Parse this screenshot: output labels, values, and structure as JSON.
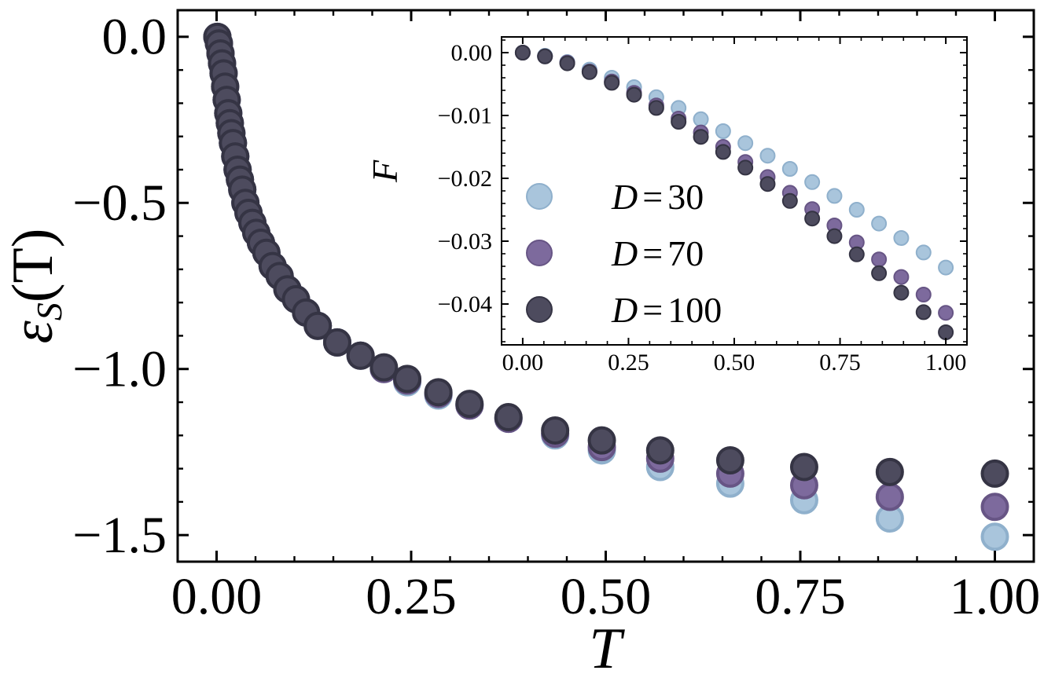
{
  "colors": {
    "D30": "#a9c5dc",
    "D70": "#7d6a9d",
    "D100": "#4d4b5e",
    "D30_edge": "#8fb0cc",
    "D70_edge": "#675585",
    "D100_edge": "#353444"
  },
  "chart_data": [
    {
      "name": "main",
      "type": "scatter",
      "title": "",
      "xlabel": "T",
      "ylabel": "ε_S(T)",
      "ylabel_main": "ε",
      "ylabel_sub": "S",
      "ylabel_rest": "(T)",
      "xlim": [
        -0.05,
        1.05
      ],
      "ylim": [
        -1.58,
        0.08
      ],
      "xticks": [
        0.0,
        0.25,
        0.5,
        0.75,
        1.0
      ],
      "xtick_labels": [
        "0.00",
        "0.25",
        "0.50",
        "0.75",
        "1.00"
      ],
      "yticks": [
        0.0,
        -0.5,
        -1.0,
        -1.5
      ],
      "ytick_labels": [
        "0.0",
        "−0.5",
        "−1.0",
        "−1.5"
      ],
      "series": [
        {
          "name": "D = 30",
          "x": [
            0.001,
            0.003,
            0.005,
            0.007,
            0.009,
            0.011,
            0.013,
            0.015,
            0.017,
            0.019,
            0.021,
            0.024,
            0.027,
            0.03,
            0.033,
            0.037,
            0.041,
            0.046,
            0.051,
            0.057,
            0.064,
            0.072,
            0.081,
            0.091,
            0.102,
            0.115,
            0.13,
            0.155,
            0.185,
            0.215,
            0.245,
            0.285,
            0.325,
            0.375,
            0.435,
            0.495,
            0.57,
            0.66,
            0.755,
            0.865,
            1.0
          ],
          "y": [
            0.0,
            -0.02,
            -0.05,
            -0.08,
            -0.11,
            -0.15,
            -0.19,
            -0.23,
            -0.26,
            -0.29,
            -0.32,
            -0.36,
            -0.4,
            -0.43,
            -0.46,
            -0.5,
            -0.53,
            -0.56,
            -0.59,
            -0.62,
            -0.65,
            -0.69,
            -0.72,
            -0.76,
            -0.79,
            -0.83,
            -0.87,
            -0.92,
            -0.96,
            -1.0,
            -1.04,
            -1.08,
            -1.11,
            -1.15,
            -1.2,
            -1.245,
            -1.295,
            -1.345,
            -1.395,
            -1.45,
            -1.505
          ]
        },
        {
          "name": "D = 70",
          "x": [
            0.001,
            0.003,
            0.005,
            0.007,
            0.009,
            0.011,
            0.013,
            0.015,
            0.017,
            0.019,
            0.021,
            0.024,
            0.027,
            0.03,
            0.033,
            0.037,
            0.041,
            0.046,
            0.051,
            0.057,
            0.064,
            0.072,
            0.081,
            0.091,
            0.102,
            0.115,
            0.13,
            0.155,
            0.185,
            0.215,
            0.245,
            0.285,
            0.325,
            0.375,
            0.435,
            0.495,
            0.57,
            0.66,
            0.755,
            0.865,
            1.0
          ],
          "y": [
            0.0,
            -0.02,
            -0.05,
            -0.08,
            -0.11,
            -0.15,
            -0.19,
            -0.23,
            -0.26,
            -0.29,
            -0.32,
            -0.36,
            -0.4,
            -0.43,
            -0.46,
            -0.5,
            -0.53,
            -0.56,
            -0.59,
            -0.62,
            -0.65,
            -0.69,
            -0.72,
            -0.76,
            -0.79,
            -0.83,
            -0.87,
            -0.92,
            -0.96,
            -1.0,
            -1.035,
            -1.075,
            -1.11,
            -1.15,
            -1.195,
            -1.235,
            -1.27,
            -1.315,
            -1.35,
            -1.385,
            -1.415
          ]
        },
        {
          "name": "D = 100",
          "x": [
            0.001,
            0.003,
            0.005,
            0.007,
            0.009,
            0.011,
            0.013,
            0.015,
            0.017,
            0.019,
            0.021,
            0.024,
            0.027,
            0.03,
            0.033,
            0.037,
            0.041,
            0.046,
            0.051,
            0.057,
            0.064,
            0.072,
            0.081,
            0.091,
            0.102,
            0.115,
            0.13,
            0.155,
            0.185,
            0.215,
            0.245,
            0.285,
            0.325,
            0.375,
            0.435,
            0.495,
            0.57,
            0.66,
            0.755,
            0.865,
            1.0
          ],
          "y": [
            0.0,
            -0.02,
            -0.05,
            -0.08,
            -0.11,
            -0.15,
            -0.19,
            -0.23,
            -0.26,
            -0.29,
            -0.32,
            -0.36,
            -0.4,
            -0.43,
            -0.46,
            -0.5,
            -0.53,
            -0.56,
            -0.59,
            -0.62,
            -0.65,
            -0.69,
            -0.72,
            -0.76,
            -0.79,
            -0.83,
            -0.87,
            -0.92,
            -0.96,
            -0.995,
            -1.03,
            -1.07,
            -1.105,
            -1.145,
            -1.185,
            -1.215,
            -1.245,
            -1.275,
            -1.295,
            -1.31,
            -1.315
          ]
        }
      ]
    },
    {
      "name": "inset",
      "type": "scatter",
      "title": "",
      "xlabel": "",
      "ylabel": "F",
      "xlim": [
        -0.05,
        1.05
      ],
      "ylim": [
        -0.0465,
        0.0025
      ],
      "xticks": [
        0.0,
        0.25,
        0.5,
        0.75,
        1.0
      ],
      "xtick_labels": [
        "0.00",
        "0.25",
        "0.50",
        "0.75",
        "1.00"
      ],
      "yticks": [
        0.0,
        -0.01,
        -0.02,
        -0.03,
        -0.04
      ],
      "ytick_labels": [
        "0.00",
        "−0.01",
        "−0.02",
        "−0.03",
        "−0.04"
      ],
      "legend": {
        "placement": "center-left",
        "entries": [
          "D = 30",
          "D = 70",
          "D = 100"
        ],
        "symbols": [
          "D",
          "D",
          "D"
        ],
        "equals": [
          "=",
          "=",
          "="
        ],
        "numbers": [
          "30",
          "70",
          "100"
        ]
      },
      "series": [
        {
          "name": "D = 30",
          "x": [
            0.0,
            0.0526,
            0.1053,
            0.1579,
            0.2105,
            0.2632,
            0.3158,
            0.3684,
            0.4211,
            0.4737,
            0.5263,
            0.5789,
            0.6316,
            0.6842,
            0.7368,
            0.7895,
            0.8421,
            0.8947,
            0.9474,
            1.0
          ],
          "y": [
            0.0,
            -0.0005,
            -0.0015,
            -0.0027,
            -0.004,
            -0.0055,
            -0.0071,
            -0.0088,
            -0.0106,
            -0.0125,
            -0.0144,
            -0.0164,
            -0.0185,
            -0.0206,
            -0.0228,
            -0.025,
            -0.0272,
            -0.0295,
            -0.0318,
            -0.0342
          ]
        },
        {
          "name": "D = 70",
          "x": [
            0.0,
            0.0526,
            0.1053,
            0.1579,
            0.2105,
            0.2632,
            0.3158,
            0.3684,
            0.4211,
            0.4737,
            0.5263,
            0.5789,
            0.6316,
            0.6842,
            0.7368,
            0.7895,
            0.8421,
            0.8947,
            0.9474,
            1.0
          ],
          "y": [
            0.0,
            -0.0006,
            -0.0016,
            -0.003,
            -0.0046,
            -0.0064,
            -0.0084,
            -0.0105,
            -0.0127,
            -0.015,
            -0.0174,
            -0.0198,
            -0.0223,
            -0.0249,
            -0.0275,
            -0.0302,
            -0.0329,
            -0.0357,
            -0.0385,
            -0.0414
          ]
        },
        {
          "name": "D = 100",
          "x": [
            0.0,
            0.0526,
            0.1053,
            0.1579,
            0.2105,
            0.2632,
            0.3158,
            0.3684,
            0.4211,
            0.4737,
            0.5263,
            0.5789,
            0.6316,
            0.6842,
            0.7368,
            0.7895,
            0.8421,
            0.8947,
            0.9474,
            1.0
          ],
          "y": [
            0.0,
            -0.0006,
            -0.0017,
            -0.0031,
            -0.0048,
            -0.0067,
            -0.0088,
            -0.011,
            -0.0134,
            -0.0158,
            -0.0183,
            -0.0209,
            -0.0236,
            -0.0264,
            -0.0292,
            -0.0321,
            -0.0351,
            -0.0382,
            -0.0413,
            -0.0445
          ]
        }
      ]
    }
  ]
}
